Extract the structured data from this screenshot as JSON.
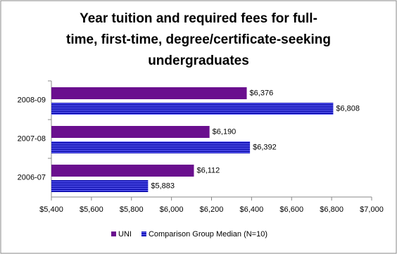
{
  "chart_data": {
    "type": "bar",
    "orientation": "horizontal",
    "title": [
      "Year tuition and required fees for full-",
      "time, first-time, degree/certificate-seeking",
      "undergraduates"
    ],
    "categories": [
      "2008-09",
      "2007-08",
      "2006-07"
    ],
    "series": [
      {
        "name": "UNI",
        "color": "#6a0f8e",
        "values": [
          6376,
          6190,
          6112
        ],
        "value_labels": [
          "$6,376",
          "$6,190",
          "$6,112"
        ]
      },
      {
        "name": "Comparison Group Median (N=10)",
        "color": "#1414b4",
        "pattern": "stripes",
        "values": [
          6808,
          6392,
          5883
        ],
        "value_labels": [
          "$6,808",
          "$6,392",
          "$5,883"
        ]
      }
    ],
    "xlim": [
      5400,
      7000
    ],
    "xticks": [
      {
        "value": 5400,
        "label": "$5,400"
      },
      {
        "value": 5600,
        "label": "$5,600"
      },
      {
        "value": 5800,
        "label": "$5,800"
      },
      {
        "value": 6000,
        "label": "$6,000"
      },
      {
        "value": 6200,
        "label": "$6,200"
      },
      {
        "value": 6400,
        "label": "$6,400"
      },
      {
        "value": 6600,
        "label": "$6,600"
      },
      {
        "value": 6800,
        "label": "$6,800"
      },
      {
        "value": 7000,
        "label": "$7,000"
      }
    ],
    "grid": false,
    "legend": "bottom"
  }
}
